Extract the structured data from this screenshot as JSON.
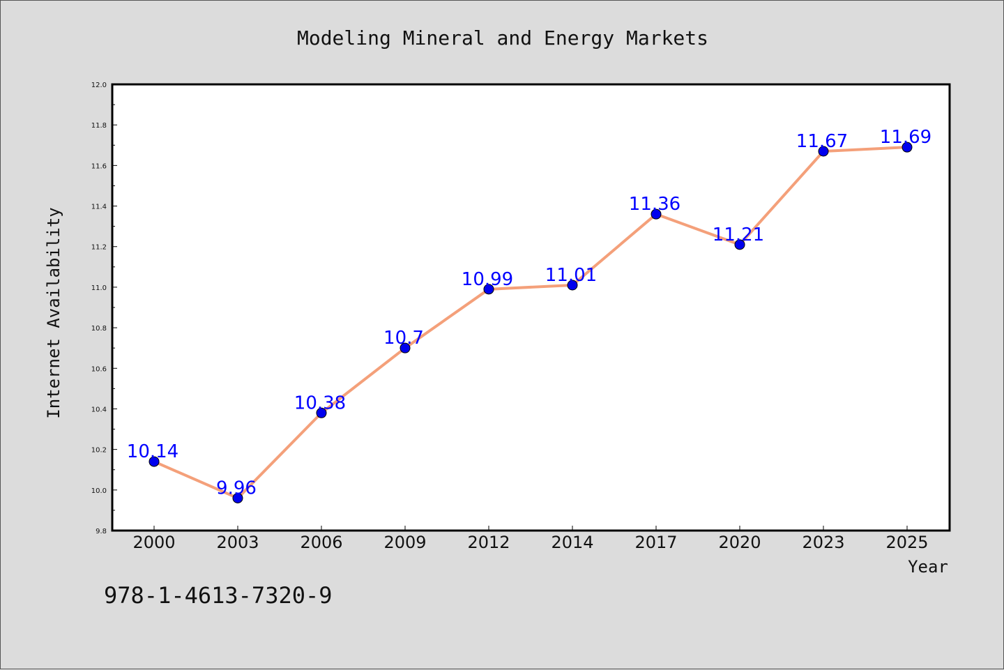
{
  "chart_data": {
    "type": "line",
    "title": "Modeling Mineral and Energy Markets",
    "xlabel": "Year",
    "ylabel": "Internet Availability",
    "categories": [
      "2000",
      "2003",
      "2006",
      "2009",
      "2012",
      "2014",
      "2017",
      "2020",
      "2023",
      "2025"
    ],
    "values": [
      10.14,
      9.96,
      10.38,
      10.7,
      10.99,
      11.01,
      11.36,
      11.21,
      11.67,
      11.69
    ],
    "data_labels": [
      "10.14",
      "9.96",
      "10.38",
      "10.7",
      "10.99",
      "11.01",
      "11.36",
      "11.21",
      "11.67",
      "11.69"
    ],
    "ylim": [
      9.8,
      12.0
    ],
    "yticks": [
      "9.8",
      "10.0",
      "10.2",
      "10.4",
      "10.6",
      "10.8",
      "11.0",
      "11.2",
      "11.4",
      "11.6",
      "11.8",
      "12.0"
    ],
    "grid": false,
    "legend": "none",
    "colors": {
      "line": "#f4a07a",
      "marker": "#0000ee",
      "marker_edge": "#000000",
      "label": "#0000ff",
      "plot_background": "#ffffff",
      "figure_background": "#dcdcdc"
    }
  },
  "footer": {
    "isbn": "978-1-4613-7320-9"
  }
}
